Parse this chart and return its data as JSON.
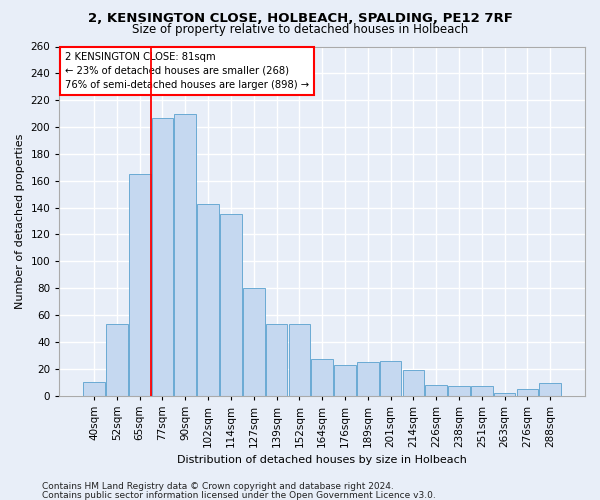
{
  "title_line1": "2, KENSINGTON CLOSE, HOLBEACH, SPALDING, PE12 7RF",
  "title_line2": "Size of property relative to detached houses in Holbeach",
  "xlabel": "Distribution of detached houses by size in Holbeach",
  "ylabel": "Number of detached properties",
  "categories": [
    "40sqm",
    "52sqm",
    "65sqm",
    "77sqm",
    "90sqm",
    "102sqm",
    "114sqm",
    "127sqm",
    "139sqm",
    "152sqm",
    "164sqm",
    "176sqm",
    "189sqm",
    "201sqm",
    "214sqm",
    "226sqm",
    "238sqm",
    "251sqm",
    "263sqm",
    "276sqm",
    "288sqm"
  ],
  "values": [
    10,
    53,
    165,
    207,
    210,
    143,
    135,
    80,
    53,
    53,
    27,
    23,
    25,
    26,
    19,
    8,
    7,
    7,
    2,
    5,
    9
  ],
  "bar_color": "#c5d8f0",
  "bar_edge_color": "#6aaad4",
  "annotation_line1": "2 KENSINGTON CLOSE: 81sqm",
  "annotation_line2": "← 23% of detached houses are smaller (268)",
  "annotation_line3": "76% of semi-detached houses are larger (898) →",
  "vline_index": 3,
  "footer1": "Contains HM Land Registry data © Crown copyright and database right 2024.",
  "footer2": "Contains public sector information licensed under the Open Government Licence v3.0.",
  "ylim": [
    0,
    260
  ],
  "yticks": [
    0,
    20,
    40,
    60,
    80,
    100,
    120,
    140,
    160,
    180,
    200,
    220,
    240,
    260
  ],
  "background_color": "#e8eef8",
  "grid_color": "#ffffff",
  "title_fontsize": 9.5,
  "subtitle_fontsize": 8.5,
  "axis_label_fontsize": 8,
  "tick_fontsize": 7.5,
  "footer_fontsize": 6.5
}
